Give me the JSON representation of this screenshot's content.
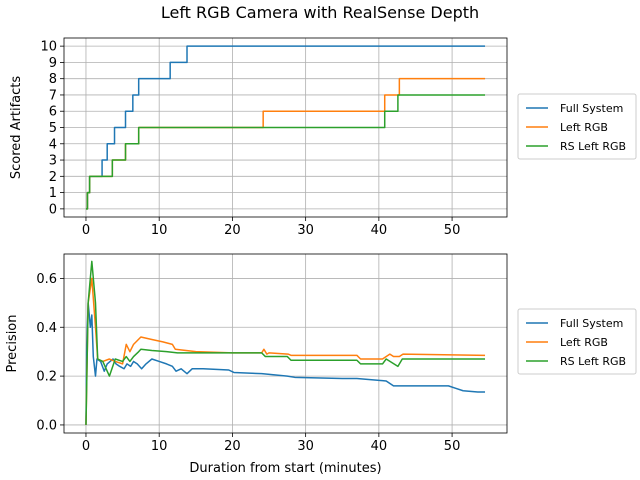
{
  "figure": {
    "title": "Left RGB Camera with RealSense Depth"
  },
  "colors": {
    "Full System": "#1f77b4",
    "Left RGB": "#ff7f0e",
    "RS Left RGB": "#2ca02c"
  },
  "chart_data": [
    {
      "type": "line",
      "step": true,
      "title": "",
      "xlabel": "",
      "ylabel": "Scored Artifacts",
      "xlim": [
        -3,
        57.5
      ],
      "ylim": [
        -0.5,
        10.5
      ],
      "xticks": [
        0,
        10,
        20,
        30,
        40,
        50
      ],
      "yticks": [
        0,
        1,
        2,
        3,
        4,
        5,
        6,
        7,
        8,
        9,
        10
      ],
      "grid": true,
      "legend": "right-outside",
      "series": [
        {
          "name": "Full System",
          "x": [
            0,
            0.2,
            0.5,
            1.5,
            2.2,
            2.9,
            3.9,
            5.4,
            6.4,
            7.2,
            11.5,
            13.8,
            54.5
          ],
          "y": [
            0,
            1,
            2,
            2,
            3,
            4,
            5,
            6,
            7,
            8,
            9,
            10,
            10
          ]
        },
        {
          "name": "Left RGB",
          "x": [
            0,
            0.2,
            0.5,
            2.7,
            3.6,
            5.4,
            6.0,
            7.2,
            24.2,
            40.8,
            42.8,
            54.5
          ],
          "y": [
            0,
            1,
            2,
            2,
            3,
            4,
            4,
            5,
            6,
            7,
            8,
            8
          ]
        },
        {
          "name": "RS Left RGB",
          "x": [
            0,
            0.2,
            0.5,
            2.7,
            3.6,
            5.4,
            6.5,
            7.2,
            40.8,
            42.6,
            54.5
          ],
          "y": [
            0,
            1,
            2,
            2,
            3,
            4,
            4,
            5,
            6,
            7,
            7
          ]
        }
      ]
    },
    {
      "type": "line",
      "title": "",
      "xlabel": "Duration from start (minutes)",
      "ylabel": "Precision",
      "xlim": [
        -3,
        57.5
      ],
      "ylim": [
        -0.033,
        0.7
      ],
      "xticks": [
        0,
        10,
        20,
        30,
        40,
        50
      ],
      "yticks": [
        0.0,
        0.2,
        0.4,
        0.6
      ],
      "ytick_labels": [
        "0.0",
        "0.2",
        "0.4",
        "0.6"
      ],
      "grid": true,
      "legend": "right-outside",
      "series": [
        {
          "name": "Full System",
          "x": [
            0,
            0.1,
            0.3,
            0.6,
            0.8,
            1.0,
            1.3,
            1.5,
            2.0,
            2.5,
            2.9,
            3.3,
            3.7,
            4.1,
            4.6,
            5.2,
            5.6,
            6.1,
            6.5,
            7.0,
            7.6,
            8.2,
            9.0,
            10.0,
            11.0,
            11.8,
            12.3,
            13.0,
            13.8,
            14.5,
            16.0,
            19.5,
            20.2,
            24.0,
            27.5,
            28.5,
            35.0,
            37.0,
            41.0,
            42.0,
            49.5,
            50.5,
            51.5,
            53.5,
            54.5
          ],
          "y": [
            0,
            0.33,
            0.5,
            0.4,
            0.45,
            0.28,
            0.2,
            0.27,
            0.26,
            0.22,
            0.25,
            0.26,
            0.27,
            0.25,
            0.24,
            0.23,
            0.25,
            0.24,
            0.26,
            0.25,
            0.23,
            0.25,
            0.27,
            0.26,
            0.25,
            0.24,
            0.22,
            0.23,
            0.21,
            0.23,
            0.23,
            0.225,
            0.215,
            0.21,
            0.2,
            0.195,
            0.19,
            0.19,
            0.18,
            0.16,
            0.16,
            0.15,
            0.14,
            0.135,
            0.135
          ]
        },
        {
          "name": "Left RGB",
          "x": [
            0,
            0.3,
            0.8,
            1.3,
            1.6,
            2.3,
            3.2,
            4.0,
            5.0,
            5.5,
            6.0,
            6.5,
            7.5,
            9.0,
            10.5,
            11.8,
            12.2,
            15.0,
            20.0,
            24.0,
            24.3,
            24.7,
            25.0,
            27.6,
            28.0,
            37.0,
            37.5,
            40.5,
            41.5,
            42.0,
            42.8,
            43.3,
            54.5
          ],
          "y": [
            0,
            0.5,
            0.6,
            0.4,
            0.27,
            0.26,
            0.27,
            0.26,
            0.25,
            0.33,
            0.3,
            0.33,
            0.36,
            0.35,
            0.34,
            0.33,
            0.31,
            0.3,
            0.295,
            0.295,
            0.31,
            0.29,
            0.295,
            0.29,
            0.285,
            0.285,
            0.27,
            0.27,
            0.29,
            0.28,
            0.28,
            0.29,
            0.285
          ]
        },
        {
          "name": "RS Left RGB",
          "x": [
            0,
            0.3,
            0.8,
            1.3,
            1.6,
            2.3,
            3.2,
            4.0,
            5.0,
            5.5,
            6.0,
            6.5,
            7.2,
            7.5,
            9.0,
            11.0,
            12.5,
            20.0,
            24.0,
            24.5,
            27.5,
            28.0,
            37.0,
            37.5,
            40.5,
            41.0,
            42.6,
            43.2,
            54.5
          ],
          "y": [
            0,
            0.5,
            0.67,
            0.5,
            0.27,
            0.26,
            0.2,
            0.27,
            0.26,
            0.28,
            0.26,
            0.28,
            0.3,
            0.31,
            0.305,
            0.3,
            0.295,
            0.295,
            0.295,
            0.28,
            0.28,
            0.265,
            0.265,
            0.25,
            0.25,
            0.27,
            0.24,
            0.27,
            0.27
          ]
        }
      ]
    }
  ]
}
